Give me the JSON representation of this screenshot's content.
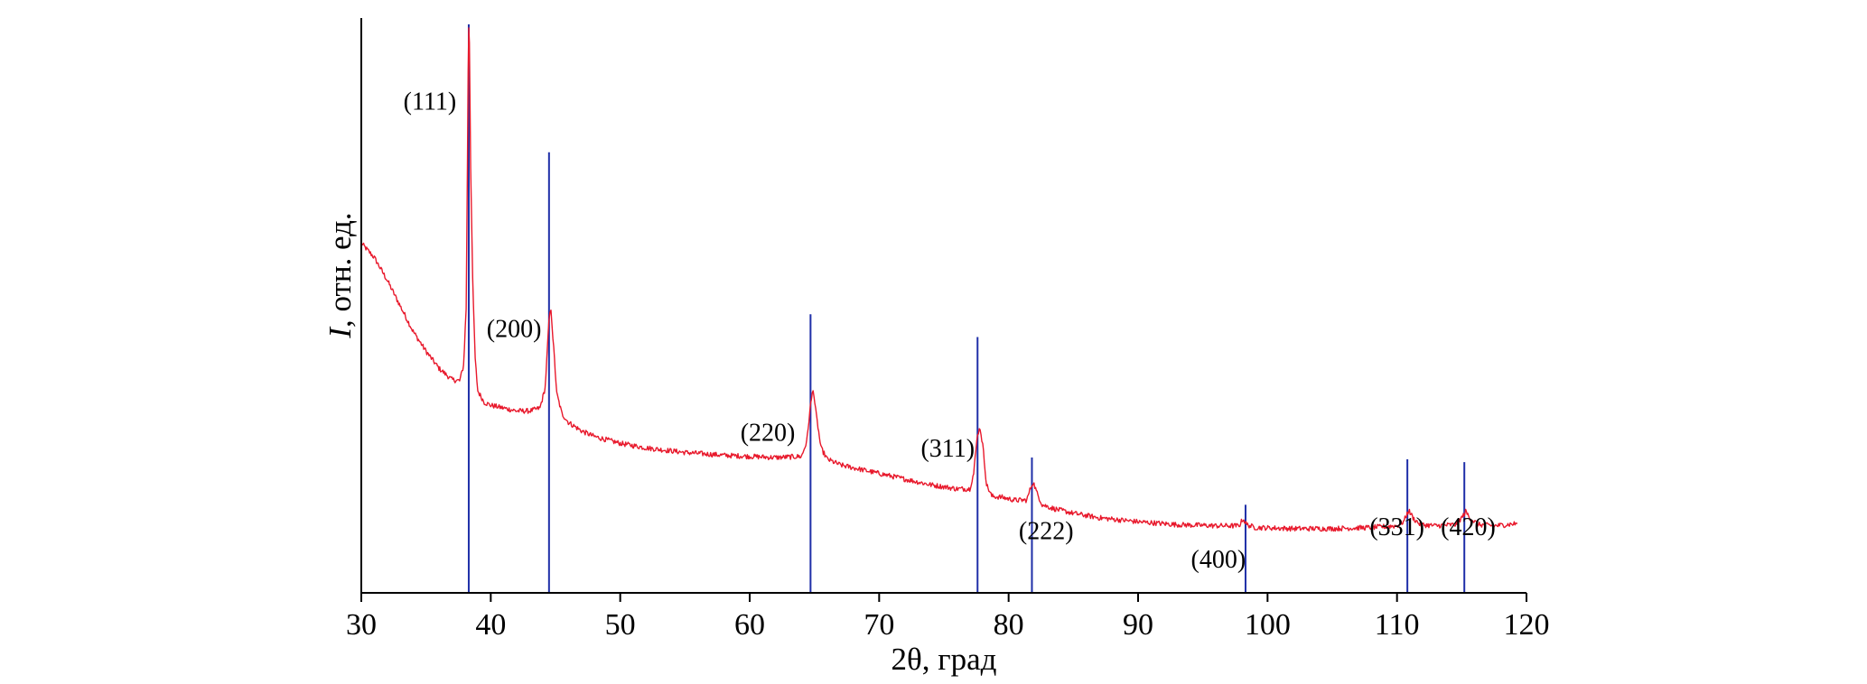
{
  "chart_data": {
    "type": "line",
    "title": "",
    "xlabel": "2θ, град",
    "ylabel_var": "I",
    "ylabel_rest": ", отн. ед.",
    "xlim": [
      30,
      120
    ],
    "ylim": [
      0,
      100
    ],
    "x_ticks": [
      30,
      40,
      50,
      60,
      70,
      80,
      90,
      100,
      110,
      120
    ],
    "y_ticks": [],
    "grid": false,
    "legend": "none",
    "colors": {
      "pattern": "#e8192c",
      "reference": "#1f2fa8"
    },
    "series": [
      {
        "values": [
          [
            30.0,
            61.5
          ],
          [
            31.0,
            59.0
          ],
          [
            32.0,
            55.0
          ],
          [
            33.0,
            50.5
          ],
          [
            34.0,
            46.0
          ],
          [
            35.0,
            42.5
          ],
          [
            36.0,
            39.5
          ],
          [
            37.0,
            37.5
          ],
          [
            37.6,
            37.3
          ],
          [
            37.9,
            40.0
          ],
          [
            38.1,
            50.0
          ],
          [
            38.2,
            75.0
          ],
          [
            38.25,
            92.0
          ],
          [
            38.3,
            99.5
          ],
          [
            38.35,
            97.0
          ],
          [
            38.45,
            75.0
          ],
          [
            38.6,
            55.0
          ],
          [
            38.8,
            41.0
          ],
          [
            39.0,
            35.5
          ],
          [
            39.5,
            33.5
          ],
          [
            40.0,
            33.0
          ],
          [
            41.0,
            32.5
          ],
          [
            42.0,
            32.0
          ],
          [
            43.0,
            32.0
          ],
          [
            43.8,
            32.5
          ],
          [
            44.2,
            36.0
          ],
          [
            44.5,
            48.0
          ],
          [
            44.65,
            50.0
          ],
          [
            44.8,
            45.0
          ],
          [
            45.1,
            35.0
          ],
          [
            45.5,
            31.5
          ],
          [
            46.0,
            30.0
          ],
          [
            47.0,
            28.5
          ],
          [
            48.0,
            27.5
          ],
          [
            50.0,
            26.3
          ],
          [
            52.0,
            25.5
          ],
          [
            55.0,
            24.7
          ],
          [
            58.0,
            24.2
          ],
          [
            60.0,
            24.0
          ],
          [
            62.0,
            23.8
          ],
          [
            64.0,
            24.0
          ],
          [
            64.4,
            26.5
          ],
          [
            64.7,
            33.0
          ],
          [
            64.9,
            36.0
          ],
          [
            65.1,
            32.0
          ],
          [
            65.5,
            25.5
          ],
          [
            66.0,
            23.5
          ],
          [
            67.0,
            22.5
          ],
          [
            68.0,
            22.0
          ],
          [
            70.0,
            21.0
          ],
          [
            72.0,
            20.0
          ],
          [
            74.0,
            19.0
          ],
          [
            76.0,
            18.3
          ],
          [
            77.0,
            18.3
          ],
          [
            77.3,
            21.0
          ],
          [
            77.6,
            28.0
          ],
          [
            77.8,
            29.0
          ],
          [
            78.0,
            26.0
          ],
          [
            78.3,
            19.0
          ],
          [
            78.7,
            17.0
          ],
          [
            79.5,
            16.8
          ],
          [
            80.5,
            16.3
          ],
          [
            81.4,
            16.3
          ],
          [
            81.7,
            18.5
          ],
          [
            81.9,
            19.5
          ],
          [
            82.2,
            17.5
          ],
          [
            82.6,
            15.5
          ],
          [
            83.5,
            14.8
          ],
          [
            85.0,
            14.0
          ],
          [
            87.0,
            13.2
          ],
          [
            90.0,
            12.5
          ],
          [
            93.0,
            12.0
          ],
          [
            96.0,
            11.8
          ],
          [
            97.8,
            11.8
          ],
          [
            98.1,
            13.0
          ],
          [
            98.4,
            12.0
          ],
          [
            99.0,
            11.5
          ],
          [
            102.0,
            11.3
          ],
          [
            105.0,
            11.3
          ],
          [
            108.0,
            11.5
          ],
          [
            110.0,
            11.8
          ],
          [
            110.5,
            12.5
          ],
          [
            110.9,
            14.5
          ],
          [
            111.3,
            13.0
          ],
          [
            111.8,
            12.0
          ],
          [
            113.0,
            11.8
          ],
          [
            114.5,
            12.0
          ],
          [
            115.0,
            13.2
          ],
          [
            115.3,
            14.3
          ],
          [
            115.7,
            13.0
          ],
          [
            116.3,
            12.0
          ],
          [
            117.5,
            11.8
          ],
          [
            118.5,
            12.0
          ],
          [
            119.3,
            12.2
          ]
        ]
      }
    ],
    "reference_lines": [
      {
        "x": 38.3,
        "height": 100
      },
      {
        "x": 44.5,
        "height": 77.5
      },
      {
        "x": 64.7,
        "height": 49.0
      },
      {
        "x": 77.6,
        "height": 45.0
      },
      {
        "x": 81.8,
        "height": 23.8
      },
      {
        "x": 98.3,
        "height": 15.5
      },
      {
        "x": 110.8,
        "height": 23.5
      },
      {
        "x": 115.2,
        "height": 23.0
      }
    ],
    "annotations": [
      {
        "text": "(111)",
        "x": 35.3,
        "y": 86.0
      },
      {
        "text": "(200)",
        "x": 41.8,
        "y": 46.0
      },
      {
        "text": "(220)",
        "x": 61.4,
        "y": 27.8
      },
      {
        "text": "(311)",
        "x": 75.3,
        "y": 25.0
      },
      {
        "text": "(222)",
        "x": 82.9,
        "y": 10.5
      },
      {
        "text": "(400)",
        "x": 96.2,
        "y": 5.5
      },
      {
        "text": "(331)",
        "x": 110.0,
        "y": 11.2
      },
      {
        "text": "(420)",
        "x": 115.5,
        "y": 11.2
      }
    ]
  }
}
